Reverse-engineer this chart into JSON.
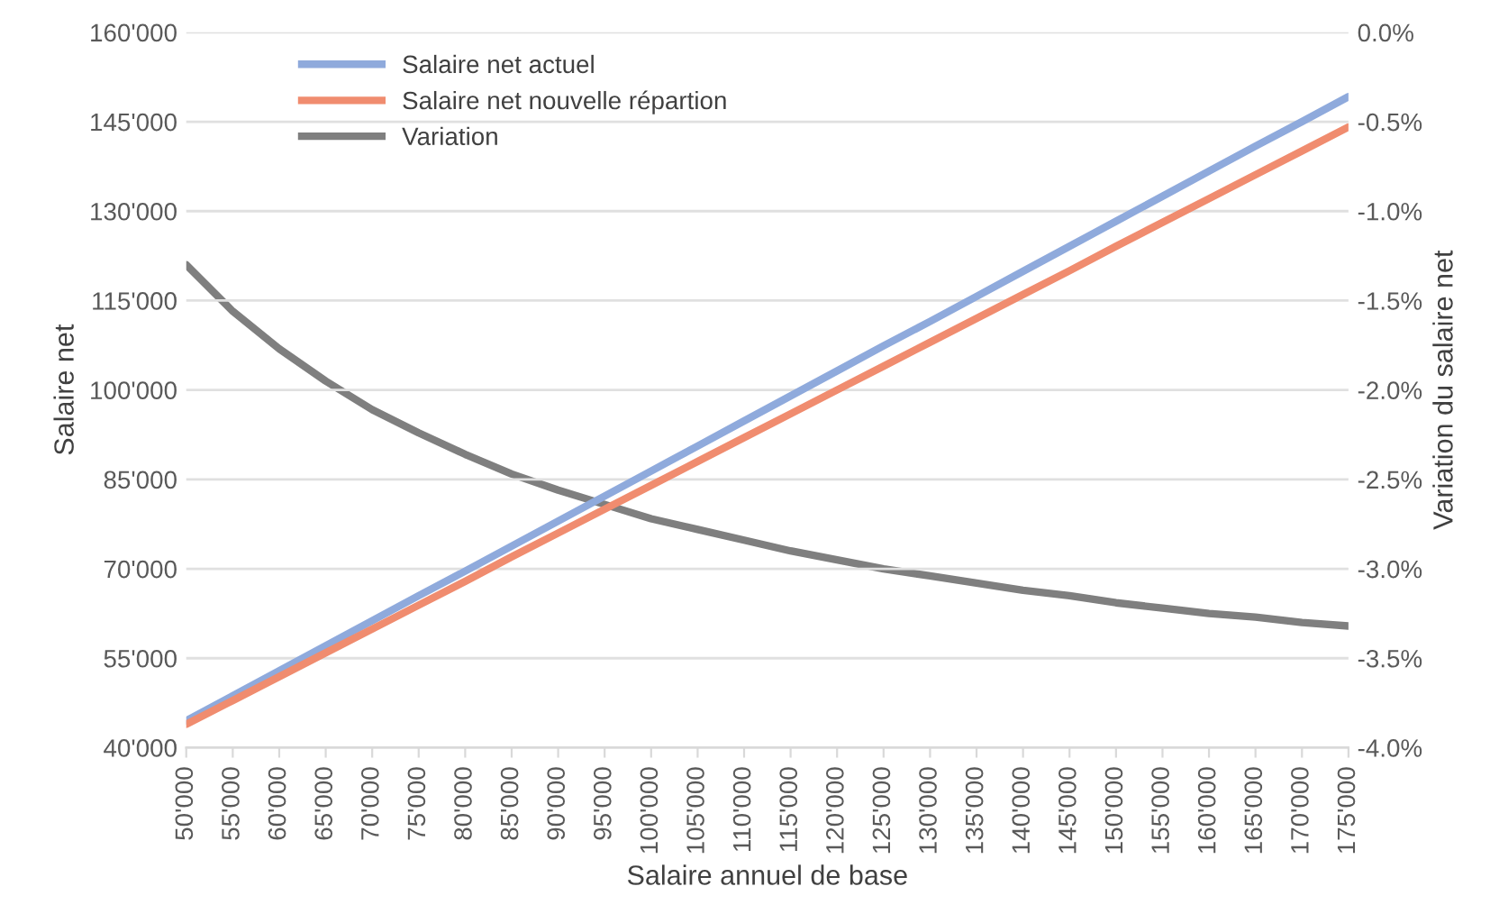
{
  "chart_data": {
    "type": "line",
    "xlabel": "Salaire annuel de base",
    "ylabel": "Salaire net",
    "y2label": "Variation du salaire net",
    "x": [
      50000,
      55000,
      60000,
      65000,
      70000,
      75000,
      80000,
      85000,
      90000,
      95000,
      100000,
      105000,
      110000,
      115000,
      120000,
      125000,
      130000,
      135000,
      140000,
      145000,
      150000,
      155000,
      160000,
      165000,
      170000,
      175000
    ],
    "series": [
      {
        "name": "Salaire net actuel",
        "color": "#8faadc",
        "values": [
          44500,
          48700,
          52900,
          57100,
          61300,
          65500,
          69600,
          73800,
          78000,
          82200,
          86400,
          90600,
          94800,
          99000,
          103200,
          107400,
          111500,
          115700,
          119900,
          124100,
          128300,
          132500,
          136700,
          140900,
          145000,
          149200
        ]
      },
      {
        "name": "Salaire net nouvelle répartion",
        "color": "#f08c6f",
        "values": [
          43900,
          47900,
          51900,
          55900,
          59900,
          63900,
          67900,
          72000,
          76000,
          80000,
          84000,
          88000,
          92000,
          96000,
          100000,
          104000,
          108000,
          112000,
          116000,
          120000,
          124100,
          128100,
          132100,
          136100,
          140100,
          144100
        ]
      },
      {
        "name": "Variation",
        "color": "#7f7f7f",
        "axis": "y2",
        "values": [
          -1.3,
          -1.56,
          -1.77,
          -1.95,
          -2.11,
          -2.24,
          -2.36,
          -2.47,
          -2.56,
          -2.64,
          -2.72,
          -2.78,
          -2.84,
          -2.9,
          -2.95,
          -3.0,
          -3.04,
          -3.08,
          -3.12,
          -3.15,
          -3.19,
          -3.22,
          -3.25,
          -3.27,
          -3.3,
          -3.32
        ]
      }
    ],
    "xlim": [
      50000,
      175000
    ],
    "xticks": [
      {
        "value": 50000,
        "label": "50'000"
      },
      {
        "value": 55000,
        "label": "55'000"
      },
      {
        "value": 60000,
        "label": "60'000"
      },
      {
        "value": 65000,
        "label": "65'000"
      },
      {
        "value": 70000,
        "label": "70'000"
      },
      {
        "value": 75000,
        "label": "75'000"
      },
      {
        "value": 80000,
        "label": "80'000"
      },
      {
        "value": 85000,
        "label": "85'000"
      },
      {
        "value": 90000,
        "label": "90'000"
      },
      {
        "value": 95000,
        "label": "95'000"
      },
      {
        "value": 100000,
        "label": "100'000"
      },
      {
        "value": 105000,
        "label": "105'000"
      },
      {
        "value": 110000,
        "label": "110'000"
      },
      {
        "value": 115000,
        "label": "115'000"
      },
      {
        "value": 120000,
        "label": "120'000"
      },
      {
        "value": 125000,
        "label": "125'000"
      },
      {
        "value": 130000,
        "label": "130'000"
      },
      {
        "value": 135000,
        "label": "135'000"
      },
      {
        "value": 140000,
        "label": "140'000"
      },
      {
        "value": 145000,
        "label": "145'000"
      },
      {
        "value": 150000,
        "label": "150'000"
      },
      {
        "value": 155000,
        "label": "155'000"
      },
      {
        "value": 160000,
        "label": "160'000"
      },
      {
        "value": 165000,
        "label": "165'000"
      },
      {
        "value": 170000,
        "label": "170'000"
      },
      {
        "value": 175000,
        "label": "175'000"
      }
    ],
    "ylim": [
      40000,
      160000
    ],
    "yticks": [
      {
        "value": 40000,
        "label": "40'000"
      },
      {
        "value": 55000,
        "label": "55'000"
      },
      {
        "value": 70000,
        "label": "70'000"
      },
      {
        "value": 85000,
        "label": "85'000"
      },
      {
        "value": 100000,
        "label": "100'000"
      },
      {
        "value": 115000,
        "label": "115'000"
      },
      {
        "value": 130000,
        "label": "130'000"
      },
      {
        "value": 145000,
        "label": "145'000"
      },
      {
        "value": 160000,
        "label": "160'000"
      }
    ],
    "y2lim": [
      -4.0,
      0.0
    ],
    "y2ticks": [
      {
        "value": -4.0,
        "label": "-4.0%"
      },
      {
        "value": -3.5,
        "label": "-3.5%"
      },
      {
        "value": -3.0,
        "label": "-3.0%"
      },
      {
        "value": -2.5,
        "label": "-2.5%"
      },
      {
        "value": -2.0,
        "label": "-2.0%"
      },
      {
        "value": -1.5,
        "label": "-1.5%"
      },
      {
        "value": -1.0,
        "label": "-1.0%"
      },
      {
        "value": -0.5,
        "label": "-0.5%"
      },
      {
        "value": 0.0,
        "label": "0.0%"
      }
    ],
    "grid": "y",
    "legend": "top left",
    "marker": "none",
    "line_style": "solid"
  }
}
